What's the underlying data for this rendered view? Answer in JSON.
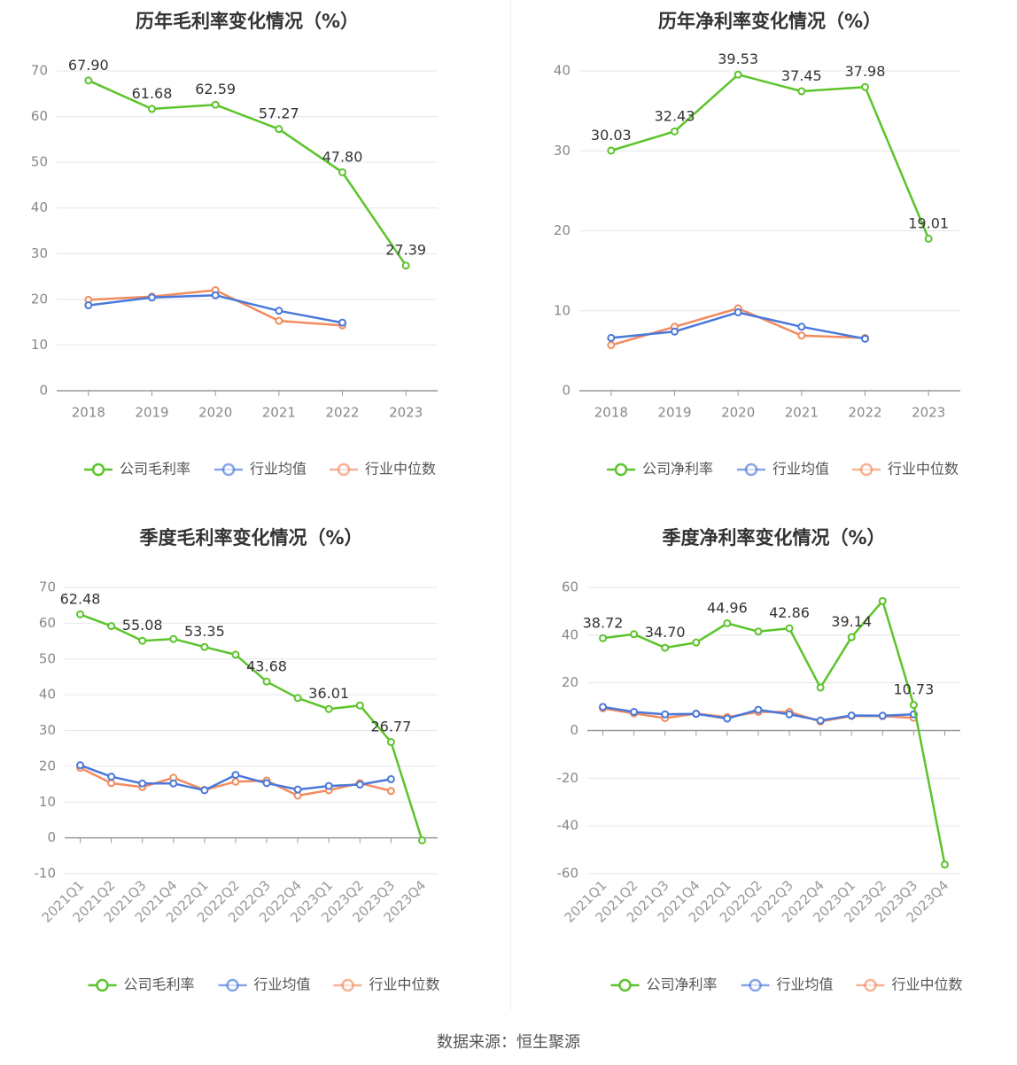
{
  "footer": {
    "source": "数据来源：恒生聚源"
  },
  "colors": {
    "company": "#5cc42b",
    "industry_avg": "#4a78db",
    "industry_median": "#f28b5e",
    "grid": "#e3e6ef",
    "axis": "#999999"
  },
  "chart_data": [
    {
      "type": "line",
      "title": "历年毛利率变化情况（%）",
      "categories": [
        "2018",
        "2019",
        "2020",
        "2021",
        "2022",
        "2023"
      ],
      "ylim": [
        0,
        70
      ],
      "yticks": [
        0,
        10,
        20,
        30,
        40,
        50,
        60,
        70
      ],
      "grid": true,
      "legend": "bottom",
      "rotate_xlabels": false,
      "series": [
        {
          "name": "公司毛利率",
          "color": "#5cc42b",
          "labels": true,
          "values": [
            67.9,
            61.68,
            62.59,
            57.27,
            47.8,
            27.39
          ]
        },
        {
          "name": "行业均值",
          "color": "#4a78db",
          "labels": false,
          "values": [
            18.7,
            20.4,
            20.9,
            17.5,
            14.9,
            null
          ]
        },
        {
          "name": "行业中位数",
          "color": "#f28b5e",
          "labels": false,
          "values": [
            19.9,
            20.6,
            22.0,
            15.3,
            14.3,
            null
          ]
        }
      ]
    },
    {
      "type": "line",
      "title": "历年净利率变化情况（%）",
      "categories": [
        "2018",
        "2019",
        "2020",
        "2021",
        "2022",
        "2023"
      ],
      "ylim": [
        0,
        40
      ],
      "yticks": [
        0,
        10,
        20,
        30,
        40
      ],
      "grid": true,
      "legend": "bottom",
      "rotate_xlabels": false,
      "series": [
        {
          "name": "公司净利率",
          "color": "#5cc42b",
          "labels": true,
          "values": [
            30.03,
            32.43,
            39.53,
            37.45,
            37.98,
            19.01
          ]
        },
        {
          "name": "行业均值",
          "color": "#4a78db",
          "labels": false,
          "values": [
            6.6,
            7.4,
            9.8,
            8.0,
            6.5,
            null
          ]
        },
        {
          "name": "行业中位数",
          "color": "#f28b5e",
          "labels": false,
          "values": [
            5.7,
            8.0,
            10.3,
            6.9,
            6.6,
            null
          ]
        }
      ]
    },
    {
      "type": "line",
      "title": "季度毛利率变化情况（%）",
      "categories": [
        "2021Q1",
        "2021Q2",
        "2021Q3",
        "2021Q4",
        "2022Q1",
        "2022Q2",
        "2022Q3",
        "2022Q4",
        "2023Q1",
        "2023Q2",
        "2023Q3",
        "2023Q4"
      ],
      "ylim": [
        -10,
        70
      ],
      "yticks": [
        -10,
        0,
        10,
        20,
        30,
        40,
        50,
        60,
        70
      ],
      "grid": true,
      "legend": "bottom",
      "rotate_xlabels": true,
      "series": [
        {
          "name": "公司毛利率",
          "color": "#5cc42b",
          "values": [
            62.48,
            59.2,
            55.08,
            55.6,
            53.35,
            51.2,
            43.68,
            39.1,
            36.01,
            37.0,
            26.77,
            -0.7
          ],
          "labeled_points": [
            0,
            2,
            4,
            6,
            8,
            10
          ]
        },
        {
          "name": "行业均值",
          "color": "#4a78db",
          "labels": false,
          "values": [
            20.3,
            17.1,
            15.2,
            15.2,
            13.3,
            17.6,
            15.3,
            13.5,
            14.5,
            14.9,
            16.4,
            null
          ]
        },
        {
          "name": "行业中位数",
          "color": "#f28b5e",
          "labels": false,
          "values": [
            19.6,
            15.3,
            14.2,
            16.8,
            13.4,
            15.7,
            16.0,
            11.8,
            13.3,
            15.3,
            13.1,
            null
          ]
        }
      ]
    },
    {
      "type": "line",
      "title": "季度净利率变化情况（%）",
      "categories": [
        "2021Q1",
        "2021Q2",
        "2021Q3",
        "2021Q4",
        "2022Q1",
        "2022Q2",
        "2022Q3",
        "2022Q4",
        "2023Q1",
        "2023Q2",
        "2023Q3",
        "2023Q4"
      ],
      "ylim": [
        -60,
        60
      ],
      "yticks": [
        -60,
        -40,
        -20,
        0,
        20,
        40,
        60
      ],
      "grid": true,
      "legend": "bottom",
      "rotate_xlabels": true,
      "series": [
        {
          "name": "公司净利率",
          "color": "#5cc42b",
          "values": [
            38.72,
            40.4,
            34.7,
            36.9,
            44.96,
            41.5,
            42.86,
            18.0,
            39.14,
            54.3,
            10.73,
            -56.2
          ],
          "labeled_points": [
            0,
            2,
            4,
            6,
            8,
            10
          ]
        },
        {
          "name": "行业均值",
          "color": "#4a78db",
          "labels": false,
          "values": [
            9.9,
            7.8,
            6.8,
            7.0,
            5.0,
            8.7,
            6.8,
            4.2,
            6.3,
            6.2,
            6.8,
            null
          ]
        },
        {
          "name": "行业中位数",
          "color": "#f28b5e",
          "labels": false,
          "values": [
            9.3,
            7.2,
            5.2,
            7.1,
            5.6,
            7.8,
            7.8,
            3.8,
            6.1,
            6.0,
            5.3,
            null
          ]
        }
      ]
    }
  ]
}
